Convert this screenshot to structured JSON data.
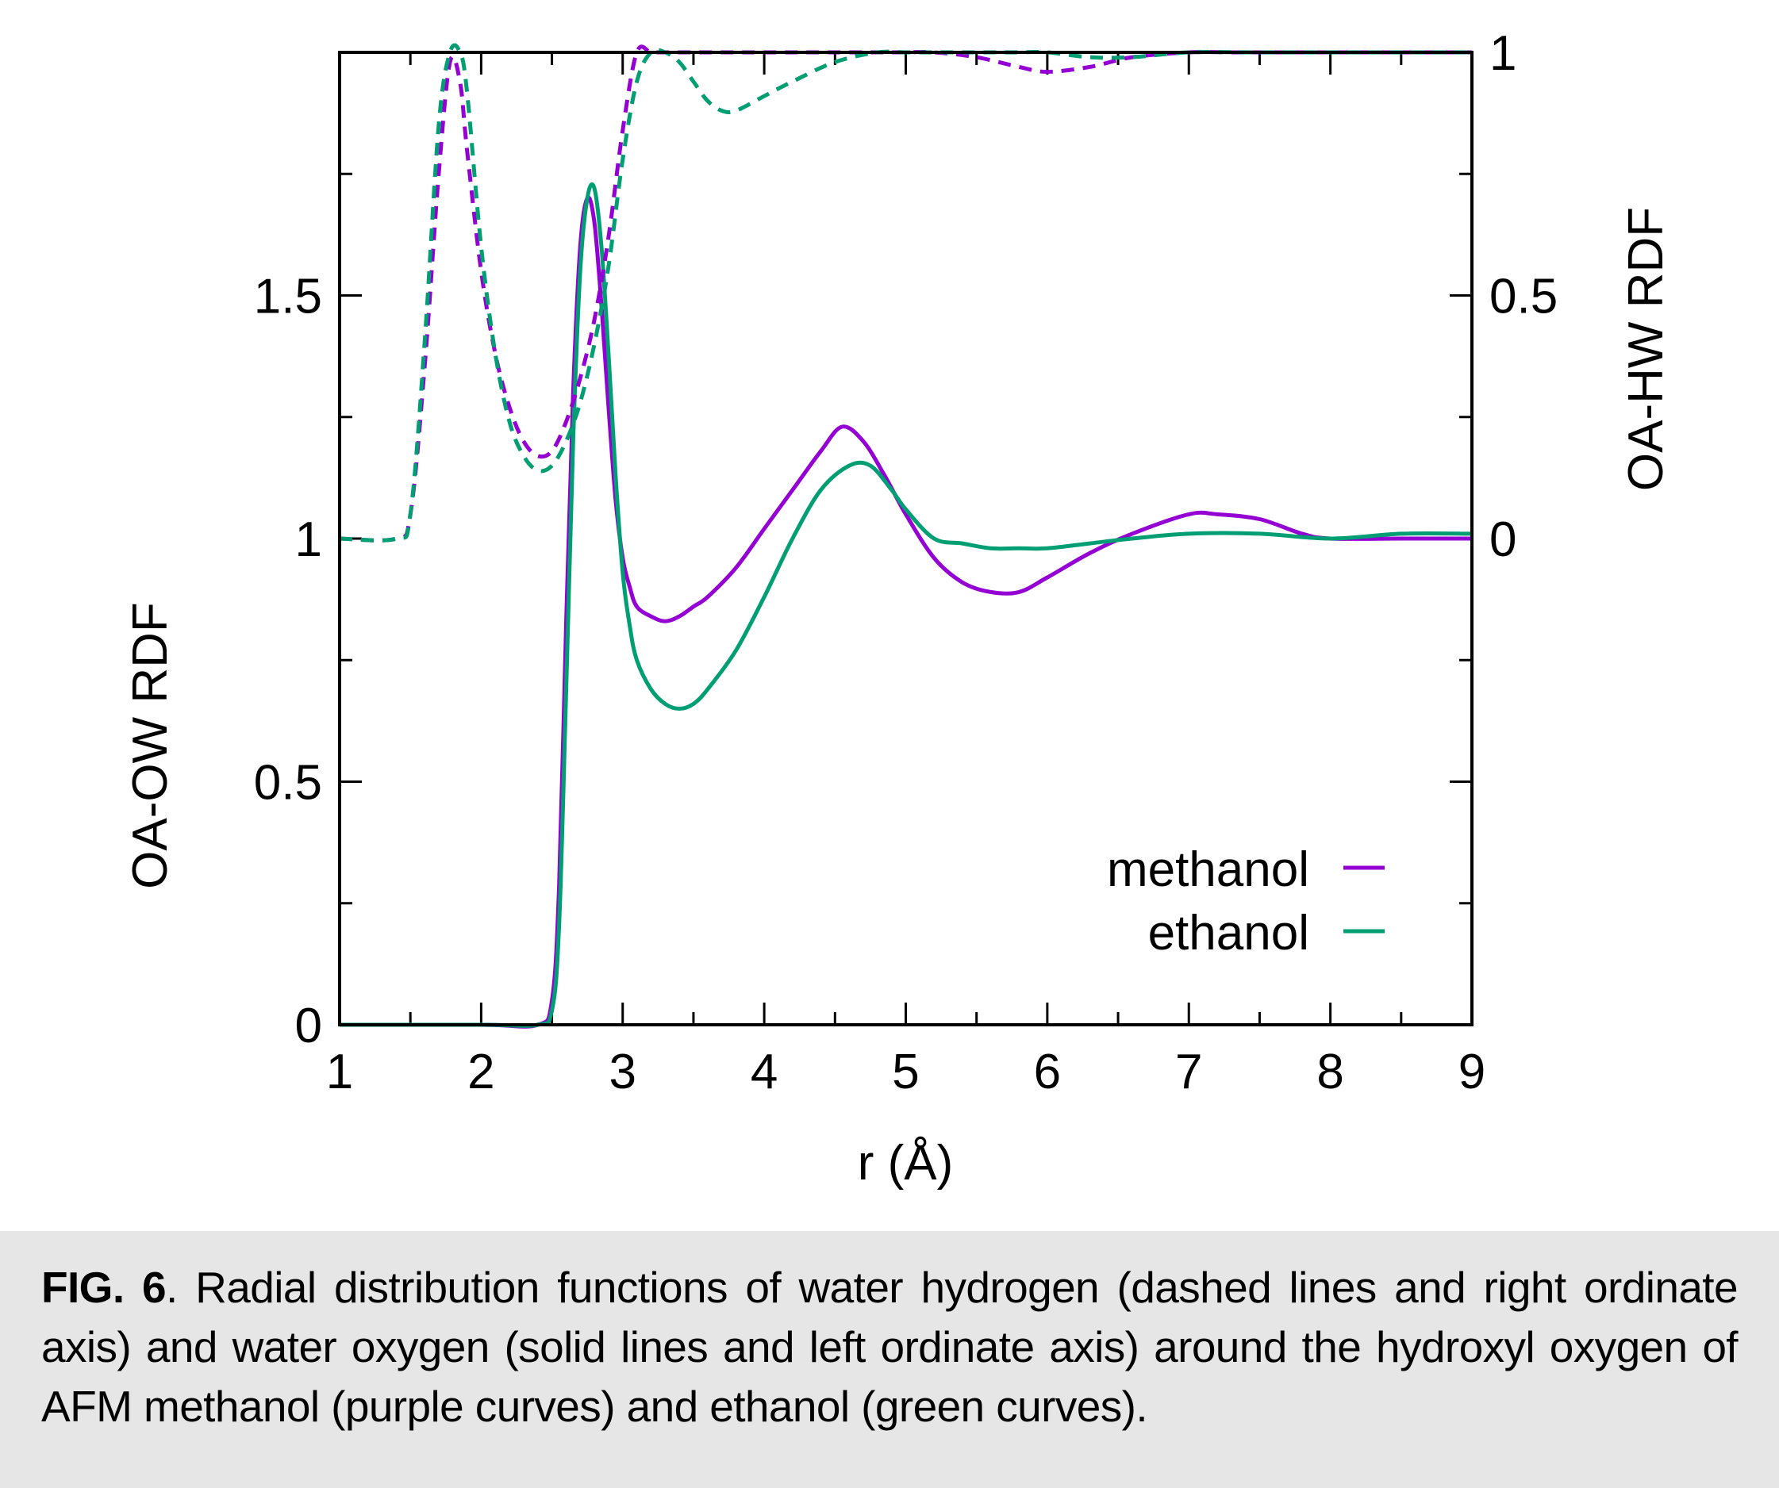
{
  "chart_data": {
    "type": "line",
    "xlabel": "r (Å)",
    "ylabel_left": "OA-OW RDF",
    "ylabel_right": "OA-HW RDF",
    "xlim": [
      1,
      9
    ],
    "ylim_left": [
      0,
      2.0
    ],
    "ylim_right": [
      -1.0,
      1.0
    ],
    "x_ticks": [
      "1",
      "2",
      "3",
      "4",
      "5",
      "6",
      "7",
      "8",
      "9"
    ],
    "y_left_ticks": [
      {
        "value": 0,
        "label": "0"
      },
      {
        "value": 0.5,
        "label": "0.5"
      },
      {
        "value": 1,
        "label": "1"
      },
      {
        "value": 1.5,
        "label": "1.5"
      }
    ],
    "y_right_ticks": [
      {
        "value": 0,
        "label": "0"
      },
      {
        "value": 0.5,
        "label": "0.5"
      },
      {
        "value": 1,
        "label": "1"
      }
    ],
    "legend": {
      "placement": "lower-right",
      "entries": [
        {
          "label": "methanol",
          "color": "#9400d3"
        },
        {
          "label": "ethanol",
          "color": "#009e73"
        }
      ]
    },
    "series": [
      {
        "name": "methanol",
        "color": "#9400d3",
        "style": "solid",
        "axis": "left",
        "x": [
          1.0,
          2.0,
          2.4,
          2.5,
          2.55,
          2.6,
          2.65,
          2.7,
          2.75,
          2.8,
          2.85,
          2.9,
          2.95,
          3.0,
          3.05,
          3.1,
          3.2,
          3.3,
          3.4,
          3.5,
          3.6,
          3.8,
          4.0,
          4.2,
          4.4,
          4.55,
          4.7,
          4.85,
          5.0,
          5.2,
          5.4,
          5.6,
          5.8,
          6.0,
          6.3,
          6.6,
          7.0,
          7.2,
          7.5,
          7.8,
          8.0,
          8.5,
          9.0
        ],
        "y": [
          0.0,
          0.0,
          0.0,
          0.05,
          0.28,
          0.82,
          1.3,
          1.6,
          1.7,
          1.65,
          1.48,
          1.27,
          1.08,
          0.96,
          0.9,
          0.86,
          0.84,
          0.83,
          0.84,
          0.86,
          0.88,
          0.94,
          1.02,
          1.1,
          1.18,
          1.23,
          1.2,
          1.13,
          1.05,
          0.96,
          0.91,
          0.89,
          0.89,
          0.92,
          0.97,
          1.01,
          1.05,
          1.05,
          1.04,
          1.01,
          1.0,
          1.0,
          1.0
        ]
      },
      {
        "name": "ethanol",
        "color": "#009e73",
        "style": "solid",
        "axis": "left",
        "x": [
          1.0,
          2.0,
          2.4,
          2.5,
          2.55,
          2.6,
          2.65,
          2.7,
          2.75,
          2.8,
          2.85,
          2.9,
          2.95,
          3.0,
          3.05,
          3.1,
          3.2,
          3.3,
          3.4,
          3.5,
          3.6,
          3.8,
          4.0,
          4.2,
          4.4,
          4.6,
          4.75,
          4.9,
          5.0,
          5.2,
          5.4,
          5.6,
          5.8,
          6.0,
          6.3,
          6.6,
          7.0,
          7.5,
          8.0,
          8.5,
          9.0
        ],
        "y": [
          0.0,
          0.0,
          0.0,
          0.03,
          0.2,
          0.68,
          1.2,
          1.55,
          1.7,
          1.72,
          1.6,
          1.38,
          1.13,
          0.93,
          0.82,
          0.75,
          0.69,
          0.66,
          0.65,
          0.66,
          0.69,
          0.77,
          0.88,
          1.0,
          1.1,
          1.15,
          1.15,
          1.1,
          1.06,
          1.0,
          0.99,
          0.98,
          0.98,
          0.98,
          0.99,
          1.0,
          1.01,
          1.01,
          1.0,
          1.01,
          1.01
        ]
      },
      {
        "name": "methanol",
        "color": "#9400d3",
        "style": "dashed",
        "axis": "right",
        "x": [
          1.0,
          1.4,
          1.5,
          1.6,
          1.7,
          1.78,
          1.85,
          1.9,
          2.0,
          2.1,
          2.2,
          2.3,
          2.4,
          2.5,
          2.6,
          2.7,
          2.8,
          2.9,
          3.0,
          3.1,
          3.2,
          3.3,
          3.4,
          3.5,
          3.6,
          3.7,
          3.8,
          4.0,
          4.2,
          4.35,
          4.5,
          4.6,
          4.8,
          5.0,
          5.2,
          5.5,
          5.8,
          6.0,
          6.3,
          6.6,
          7.0,
          7.3,
          7.6,
          7.9,
          8.2,
          8.5,
          9.0
        ],
        "y": [
          0.0,
          0.0,
          0.05,
          0.35,
          0.75,
          0.98,
          0.94,
          0.8,
          0.55,
          0.38,
          0.27,
          0.2,
          0.17,
          0.18,
          0.24,
          0.33,
          0.45,
          0.62,
          0.84,
          1.02,
          1.11,
          1.13,
          1.1,
          1.05,
          1.01,
          1.0,
          1.01,
          1.05,
          1.09,
          1.11,
          1.1,
          1.1,
          1.07,
          1.03,
          1.01,
          0.99,
          0.97,
          0.96,
          0.97,
          0.99,
          1.02,
          1.03,
          1.04,
          1.03,
          1.02,
          1.01,
          1.0
        ]
      },
      {
        "name": "ethanol",
        "color": "#009e73",
        "style": "dashed",
        "axis": "right",
        "x": [
          1.0,
          1.4,
          1.5,
          1.6,
          1.7,
          1.78,
          1.85,
          1.9,
          2.0,
          2.1,
          2.2,
          2.3,
          2.4,
          2.5,
          2.6,
          2.7,
          2.8,
          2.9,
          3.0,
          3.1,
          3.2,
          3.3,
          3.4,
          3.5,
          3.6,
          3.7,
          3.8,
          4.0,
          4.2,
          4.5,
          4.8,
          5.0,
          5.2,
          5.4,
          5.6,
          5.8,
          6.0,
          6.3,
          6.6,
          7.0,
          7.5,
          8.0,
          8.5,
          9.0
        ],
        "y": [
          0.0,
          0.0,
          0.05,
          0.4,
          0.85,
          1.14,
          1.1,
          0.92,
          0.6,
          0.38,
          0.24,
          0.17,
          0.14,
          0.15,
          0.2,
          0.28,
          0.4,
          0.56,
          0.78,
          0.94,
          1.0,
          1.0,
          0.98,
          0.94,
          0.9,
          0.88,
          0.88,
          0.91,
          0.94,
          0.98,
          1.01,
          1.03,
          1.04,
          1.05,
          1.04,
          1.02,
          1.0,
          0.99,
          0.99,
          1.0,
          1.02,
          1.02,
          1.01,
          1.02
        ]
      }
    ]
  },
  "caption": {
    "label": "FIG. 6",
    "text": ". Radial distribution functions of water hydrogen (dashed lines and right ordinate axis) and water oxygen (solid lines and left ordinate axis) around the hydroxyl oxygen of AFM methanol (purple curves) and ethanol (green curves)."
  }
}
